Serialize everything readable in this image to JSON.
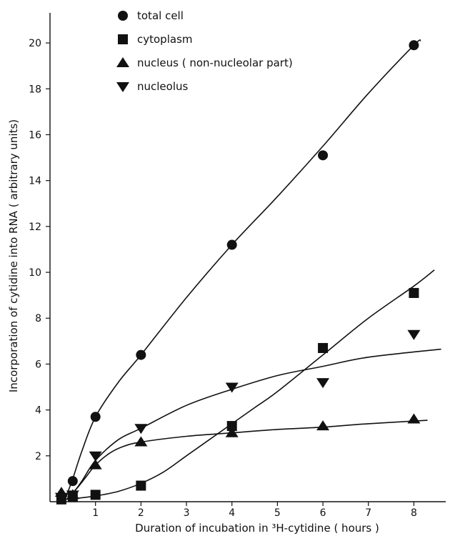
{
  "chart_data": {
    "type": "scatter",
    "xlabel": "Duration of incubation in ³H-cytidine ( hours )",
    "ylabel": "Incorporation of cytidine into RNA ( arbitrary units)",
    "xlim": [
      0,
      8.7
    ],
    "ylim": [
      0,
      21
    ],
    "xticks": [
      1,
      2,
      3,
      4,
      5,
      6,
      7,
      8
    ],
    "yticks": [
      2,
      4,
      6,
      8,
      10,
      12,
      14,
      16,
      18,
      20
    ],
    "grid": false,
    "legend_position": "top-left",
    "series": [
      {
        "name": "total cell",
        "marker": "circle",
        "points": [
          [
            0.25,
            0.2
          ],
          [
            0.5,
            0.9
          ],
          [
            1,
            3.7
          ],
          [
            2,
            6.4
          ],
          [
            4,
            11.2
          ],
          [
            6,
            15.1
          ],
          [
            8,
            19.9
          ]
        ],
        "curve": [
          [
            0.35,
            0.2
          ],
          [
            0.5,
            1.0
          ],
          [
            0.7,
            2.2
          ],
          [
            1,
            3.7
          ],
          [
            1.5,
            5.2
          ],
          [
            2,
            6.4
          ],
          [
            3,
            8.9
          ],
          [
            4,
            11.2
          ],
          [
            5,
            13.3
          ],
          [
            6,
            15.5
          ],
          [
            7,
            17.8
          ],
          [
            8,
            19.9
          ],
          [
            8.15,
            20.1
          ]
        ]
      },
      {
        "name": "cytoplasm",
        "marker": "square",
        "points": [
          [
            0.25,
            0.1
          ],
          [
            0.5,
            0.2
          ],
          [
            1,
            0.3
          ],
          [
            2,
            0.7
          ],
          [
            4,
            3.3
          ],
          [
            6,
            6.7
          ],
          [
            8,
            9.1
          ]
        ],
        "curve": [
          [
            0.3,
            0.1
          ],
          [
            0.6,
            0.15
          ],
          [
            1,
            0.25
          ],
          [
            1.5,
            0.45
          ],
          [
            2,
            0.8
          ],
          [
            2.5,
            1.3
          ],
          [
            3,
            2.0
          ],
          [
            3.5,
            2.7
          ],
          [
            4,
            3.4
          ],
          [
            4.5,
            4.1
          ],
          [
            5,
            4.8
          ],
          [
            6,
            6.4
          ],
          [
            7,
            8.0
          ],
          [
            8,
            9.4
          ],
          [
            8.45,
            10.1
          ]
        ]
      },
      {
        "name": "nucleus ( non-nucleolar part)",
        "marker": "triangle-up",
        "points": [
          [
            0.25,
            0.4
          ],
          [
            0.5,
            0.3
          ],
          [
            1,
            1.6
          ],
          [
            2,
            2.6
          ],
          [
            4,
            3.0
          ],
          [
            6,
            3.3
          ],
          [
            8,
            3.6
          ]
        ],
        "curve": [
          [
            0.4,
            0.2
          ],
          [
            0.6,
            0.6
          ],
          [
            0.8,
            1.1
          ],
          [
            1,
            1.6
          ],
          [
            1.3,
            2.1
          ],
          [
            1.6,
            2.4
          ],
          [
            2,
            2.6
          ],
          [
            3,
            2.85
          ],
          [
            4,
            3.0
          ],
          [
            5,
            3.15
          ],
          [
            6,
            3.25
          ],
          [
            7,
            3.4
          ],
          [
            8.3,
            3.55
          ]
        ]
      },
      {
        "name": "nucleolus",
        "marker": "triangle-down",
        "points": [
          [
            0.25,
            0.2
          ],
          [
            0.5,
            0.3
          ],
          [
            1,
            2.0
          ],
          [
            2,
            3.2
          ],
          [
            4,
            5.0
          ],
          [
            6,
            5.2
          ],
          [
            8,
            7.3
          ]
        ],
        "curve": [
          [
            0.45,
            0.2
          ],
          [
            0.7,
            0.9
          ],
          [
            1,
            1.8
          ],
          [
            1.5,
            2.7
          ],
          [
            2,
            3.2
          ],
          [
            3,
            4.2
          ],
          [
            4,
            4.9
          ],
          [
            5,
            5.5
          ],
          [
            6,
            5.9
          ],
          [
            7,
            6.3
          ],
          [
            8.6,
            6.65
          ]
        ]
      }
    ]
  }
}
